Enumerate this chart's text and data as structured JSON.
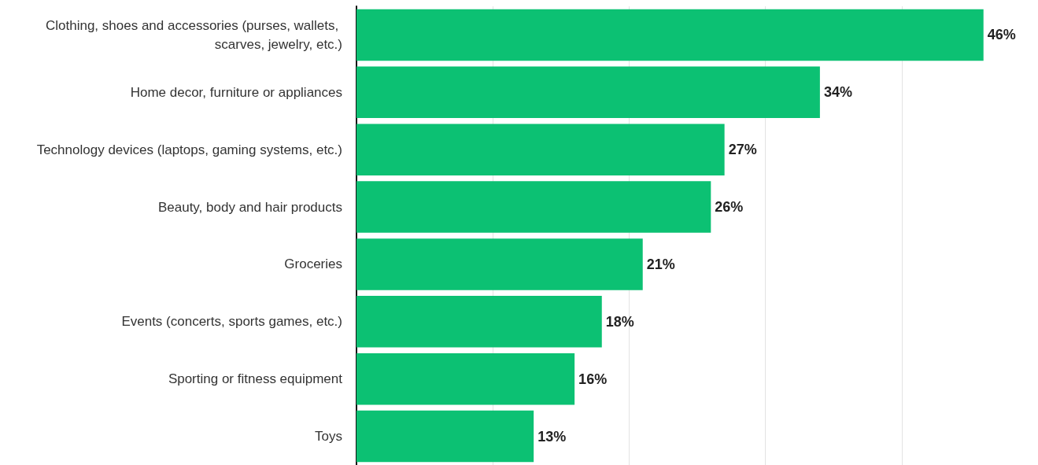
{
  "chart_data": {
    "type": "bar",
    "orientation": "horizontal",
    "categories": [
      "Clothing, shoes and accessories (purses, wallets, scarves, jewelry, etc.)",
      "Home decor, furniture or appliances",
      "Technology devices (laptops, gaming systems, etc.)",
      "Beauty, body and hair products",
      "Groceries",
      "Events (concerts, sports games, etc.)",
      "Sporting or fitness equipment",
      "Toys"
    ],
    "values": [
      46,
      34,
      27,
      26,
      21,
      18,
      16,
      13
    ],
    "value_labels": [
      "46%",
      "34%",
      "27%",
      "26%",
      "21%",
      "18%",
      "16%",
      "13%"
    ],
    "color": "#0cc173",
    "grid": "x",
    "tick_labels": "y"
  }
}
